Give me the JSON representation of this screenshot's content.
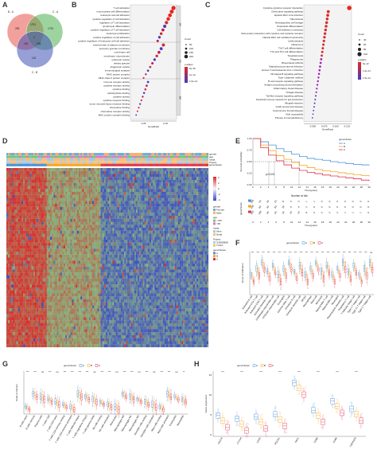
{
  "panels": {
    "A": {
      "letter": "A",
      "sets": [
        "B - A",
        "C - A",
        "C - B"
      ],
      "counts": [
        "259",
        "1733",
        "1791",
        "150",
        "238",
        "120",
        "2"
      ],
      "colors": [
        "#e8524a",
        "#4caf50",
        "#3f51b5"
      ]
    },
    "B": {
      "letter": "B",
      "xlabel": "GeneRatio",
      "xticks": [
        "0.05",
        "0.10"
      ],
      "groups": [
        "BP",
        "CC",
        "MF"
      ],
      "terms": [
        "T cell activation",
        "mononuclear cell differentiation",
        "leukocyte cell-cell adhesion",
        "positive regulation of cell activation",
        "regulation of T cell activation",
        "lymphocyte differentiation",
        "positive regulation of T cell activation",
        "leukocyte proliferation",
        "positive regulation of cell adhesion",
        "positive regulation of leukocyte cell-cell adhesion",
        "external side of plasma membrane",
        "secretory granule membrane",
        "membrane raft",
        "membrane microdomain",
        "endocytic vesicle",
        "tertiary granule",
        "phagocytic vesicle",
        "immunological synapse",
        "MHC protein complex",
        "MHC class II protein complex",
        "immune receptor activity",
        "cytokine receptor activity",
        "cytokine binding",
        "carbohydrate binding",
        "cytokine activity",
        "cytokine receptor binding",
        "tumor necrosis factor receptor binding",
        "chemokine binding",
        "chemokine receptor activity",
        "MHC protein complex binding"
      ],
      "legend_count_title": "Count",
      "legend_count_values": [
        "50",
        "100",
        "150",
        "200"
      ],
      "legend_p_title": "p.adjust",
      "legend_p_values": [
        "5e-15",
        "1e-14",
        "1.5e-14"
      ]
    },
    "C": {
      "letter": "C",
      "xlabel": "GeneRatio",
      "xticks": [
        "0.050",
        "0.075",
        "0.100",
        "0.125"
      ],
      "terms": [
        "Cytokine-cytokine receptor interaction",
        "Chemokine signaling pathway",
        "Epstein-Barr virus infection",
        "Tuberculosis",
        "Hematopoietic cell lineage",
        "Osteoclast differentiation",
        "Cell adhesion molecules",
        "Viral protein interaction with cytokine and cytokine receptor",
        "Natural killer cell mediated cytotoxicity",
        "Leishmaniasis",
        "Influenza A",
        "Th17 cell differentiation",
        "Th1 and Th2 cell differentiation",
        "Toxoplasmosis",
        "Phagosome",
        "Rheumatoid arthritis",
        "Staphylococcus aureus infection",
        "Human T-cell leukemia virus 1 infection",
        "NF-kappa B signaling pathway",
        "Type I diabetes mellitus",
        "B cell receptor signaling pathway",
        "Antigen processing and presentation",
        "Inflammatory bowel disease",
        "Chagas disease",
        "Toll-like receptor signaling pathway",
        "Intestinal immune network for IgA production",
        "Allograft rejection",
        "Graft-versus-host disease",
        "Autoimmune thyroid disease",
        "Viral myocarditis",
        "Primary immunodeficiency"
      ],
      "legend_count_title": "Count",
      "legend_count_values": [
        "40",
        "60",
        "80",
        "100"
      ],
      "legend_p_title": "p.adjust",
      "legend_p_values": [
        "5e-12",
        "1.0e-11",
        "1.5e-11"
      ]
    },
    "D": {
      "letter": "D",
      "annot_rows": [
        "gender",
        "age",
        "fustat",
        "Project",
        "geneCluster"
      ],
      "legend": {
        "gender_title": "gender",
        "gender": [
          "Female",
          "Male"
        ],
        "age_title": "age",
        "age": [
          "<=65",
          ">65"
        ],
        "fustat_title": "fustat",
        "fustat": [
          "Alive",
          "Dead"
        ],
        "project_title": "Project",
        "project": [
          "GSE65858",
          "TCGA"
        ],
        "cluster_title": "geneCluster",
        "cluster": [
          "A",
          "B",
          "C"
        ],
        "scale": [
          "4",
          "2",
          "0",
          "-2",
          "-4"
        ]
      }
    },
    "E": {
      "letter": "E",
      "ylabel": "Survival probability",
      "xlabel": "Time(years)",
      "pvalue": "p<0.001",
      "legend_title": "geneCluster",
      "legend": [
        "A",
        "B",
        "C"
      ],
      "yticks": [
        "1.00",
        "0.75",
        "0.50",
        "0.25",
        "0.00"
      ],
      "xticks": [
        "0",
        "2",
        "4",
        "6",
        "8",
        "10",
        "12",
        "14",
        "16",
        "18",
        "20",
        "22",
        "24",
        "26",
        "28",
        "30"
      ],
      "risk_title": "Number at risk",
      "risk_ylabel": "geneCluster",
      "risk_rows": [
        [
          "106",
          "56",
          "33",
          "23",
          "8",
          "4",
          "3",
          "1",
          "1",
          "0",
          "0",
          "0",
          "0",
          "0",
          "0",
          "0"
        ],
        [
          "158",
          "84",
          "43",
          "30",
          "18",
          "9",
          "4",
          "2",
          "0",
          "0",
          "0",
          "0",
          "0",
          "0",
          "0",
          "0"
        ],
        [
          "363",
          "186",
          "96",
          "56",
          "34",
          "20",
          "14",
          "8",
          "4",
          "3",
          "2",
          "2",
          "1",
          "1",
          "1",
          "0"
        ]
      ]
    },
    "F": {
      "letter": "F",
      "legend_title": "geneCluster",
      "legend": [
        "A",
        "B",
        "C"
      ],
      "ylabel": "Score of infiltration",
      "categories": [
        "Activated B cell",
        "Activated CD4 T cell",
        "Activated CD8 T cell",
        "Activated dendritic cell",
        "CD56bright natural killer cell",
        "CD56dim natural killer cell",
        "Eosinophil",
        "Gamma delta T cell",
        "Immature B cell",
        "Immature dendritic cell",
        "MDSC",
        "Macrophage",
        "Mast cell",
        "Monocyte",
        "Natural killer T cell",
        "Natural killer cell",
        "Neutrophil",
        "Plasmacytoid dendritic cell",
        "Regulatory T cell",
        "T follicular helper cell",
        "Type 1 T helper cell",
        "Type 17 T helper cell",
        "Type 2 T helper cell"
      ],
      "sig": [
        "***",
        "***",
        "***",
        "***",
        "***",
        "***",
        "***",
        "***",
        "***",
        "***",
        "***",
        "***",
        "***",
        "***",
        "***",
        "***",
        "***",
        "***",
        "***",
        "***",
        "***",
        "***",
        "ns"
      ]
    },
    "G": {
      "letter": "G",
      "legend_title": "geneCluster",
      "legend": [
        "A",
        "B",
        "C"
      ],
      "ylabel": "Scale of fraction",
      "categories": [
        "B cells naive",
        "B cells memory",
        "Plasma cells",
        "T cells CD8",
        "T cells CD4 naive",
        "T cells CD4 memory resting",
        "T cells CD4 memory activated",
        "T cells follicular helper",
        "T cells regulatory (Tregs)",
        "T cells gamma delta",
        "NK cells resting",
        "NK cells activated",
        "Monocytes",
        "Macrophages M0",
        "Macrophages M1",
        "Macrophages M2",
        "Dendritic cells resting",
        "Dendritic cells activated",
        "Mast cells resting",
        "Mast cells activated",
        "Eosinophils",
        "Neutrophils"
      ],
      "sig": [
        "***",
        "***",
        "ns",
        "***",
        "ns",
        "***",
        "***",
        "***",
        "***",
        "ns",
        "***",
        "***",
        "ns",
        "***",
        "***",
        "ns",
        "***",
        "ns",
        "***",
        "***",
        "ns",
        "**"
      ]
    },
    "H": {
      "letter": "H",
      "legend_title": "geneCluster",
      "legend": [
        "A",
        "B",
        "C"
      ],
      "ylabel": "Gene expression",
      "categories": [
        "CD274",
        "CTLA4",
        "LAG3",
        "PDCD1",
        "PAV1",
        "CD80",
        "CD86",
        "TNFRSF9"
      ],
      "sig": [
        "***",
        "***",
        "***",
        "***",
        "***",
        "***",
        "***",
        "***"
      ],
      "yticks": [
        "15",
        "10",
        "5",
        "0"
      ]
    }
  },
  "colors": {
    "A": "#4a90d9",
    "B": "#f5a623",
    "C": "#e0334b",
    "heat_hi": "#d92b2b",
    "heat_lo": "#3848c8"
  }
}
